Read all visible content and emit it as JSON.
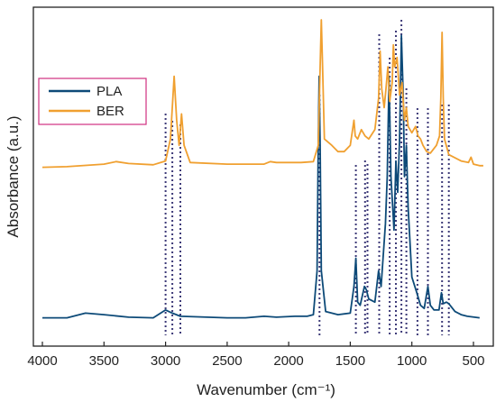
{
  "chart_data": {
    "type": "line",
    "xlabel": "Wavenumber (cm⁻¹)",
    "ylabel": "Absorbance (a.u.)",
    "x_ticks": [
      4000,
      3500,
      3000,
      2500,
      2000,
      1500,
      1000,
      500
    ],
    "xlim": [
      4000,
      400
    ],
    "ylim": [
      0,
      1
    ],
    "x_reversed": true,
    "legend_position": "top-left",
    "reference_lines_cm1": [
      3000,
      2945,
      2880,
      1750,
      1455,
      1380,
      1360,
      1265,
      1180,
      1130,
      1085,
      1045,
      955,
      870,
      755,
      700
    ],
    "series": [
      {
        "name": "PLA",
        "color": "#0d4a78",
        "baseline": 0.05,
        "points": [
          [
            4000,
            0.05
          ],
          [
            3800,
            0.05
          ],
          [
            3650,
            0.065
          ],
          [
            3500,
            0.06
          ],
          [
            3300,
            0.052
          ],
          [
            3100,
            0.05
          ],
          [
            3000,
            0.075
          ],
          [
            2945,
            0.065
          ],
          [
            2880,
            0.055
          ],
          [
            2500,
            0.05
          ],
          [
            2350,
            0.05
          ],
          [
            2200,
            0.055
          ],
          [
            2100,
            0.052
          ],
          [
            1950,
            0.055
          ],
          [
            1850,
            0.055
          ],
          [
            1800,
            0.06
          ],
          [
            1770,
            0.2
          ],
          [
            1760,
            0.6
          ],
          [
            1753,
            0.82
          ],
          [
            1745,
            0.6
          ],
          [
            1735,
            0.2
          ],
          [
            1700,
            0.07
          ],
          [
            1600,
            0.06
          ],
          [
            1500,
            0.065
          ],
          [
            1470,
            0.15
          ],
          [
            1455,
            0.24
          ],
          [
            1440,
            0.1
          ],
          [
            1420,
            0.09
          ],
          [
            1385,
            0.15
          ],
          [
            1370,
            0.14
          ],
          [
            1350,
            0.11
          ],
          [
            1300,
            0.1
          ],
          [
            1270,
            0.2
          ],
          [
            1250,
            0.15
          ],
          [
            1215,
            0.35
          ],
          [
            1200,
            0.5
          ],
          [
            1185,
            0.82
          ],
          [
            1170,
            0.5
          ],
          [
            1145,
            0.33
          ],
          [
            1130,
            0.55
          ],
          [
            1115,
            0.45
          ],
          [
            1100,
            0.62
          ],
          [
            1085,
            0.95
          ],
          [
            1070,
            0.75
          ],
          [
            1060,
            0.5
          ],
          [
            1045,
            0.6
          ],
          [
            1030,
            0.4
          ],
          [
            1000,
            0.18
          ],
          [
            960,
            0.13
          ],
          [
            930,
            0.09
          ],
          [
            900,
            0.08
          ],
          [
            870,
            0.15
          ],
          [
            850,
            0.09
          ],
          [
            820,
            0.075
          ],
          [
            780,
            0.075
          ],
          [
            760,
            0.13
          ],
          [
            745,
            0.095
          ],
          [
            720,
            0.1
          ],
          [
            700,
            0.095
          ],
          [
            650,
            0.07
          ],
          [
            600,
            0.06
          ],
          [
            550,
            0.055
          ],
          [
            450,
            0.05
          ]
        ]
      },
      {
        "name": "BER",
        "color": "#f0a030",
        "baseline": 0.53,
        "points": [
          [
            4000,
            0.53
          ],
          [
            3800,
            0.532
          ],
          [
            3500,
            0.54
          ],
          [
            3400,
            0.548
          ],
          [
            3300,
            0.542
          ],
          [
            3100,
            0.538
          ],
          [
            3000,
            0.55
          ],
          [
            2960,
            0.62
          ],
          [
            2930,
            0.82
          ],
          [
            2910,
            0.68
          ],
          [
            2890,
            0.6
          ],
          [
            2870,
            0.7
          ],
          [
            2850,
            0.6
          ],
          [
            2800,
            0.545
          ],
          [
            2500,
            0.54
          ],
          [
            2200,
            0.54
          ],
          [
            2150,
            0.548
          ],
          [
            2100,
            0.545
          ],
          [
            2000,
            0.545
          ],
          [
            1900,
            0.545
          ],
          [
            1800,
            0.548
          ],
          [
            1760,
            0.6
          ],
          [
            1745,
            0.85
          ],
          [
            1735,
            1.0
          ],
          [
            1725,
            0.85
          ],
          [
            1710,
            0.62
          ],
          [
            1650,
            0.6
          ],
          [
            1600,
            0.58
          ],
          [
            1550,
            0.58
          ],
          [
            1500,
            0.6
          ],
          [
            1470,
            0.68
          ],
          [
            1460,
            0.63
          ],
          [
            1440,
            0.62
          ],
          [
            1410,
            0.65
          ],
          [
            1380,
            0.63
          ],
          [
            1350,
            0.62
          ],
          [
            1300,
            0.65
          ],
          [
            1270,
            0.75
          ],
          [
            1258,
            0.9
          ],
          [
            1245,
            0.78
          ],
          [
            1225,
            0.72
          ],
          [
            1210,
            0.78
          ],
          [
            1195,
            0.85
          ],
          [
            1180,
            0.74
          ],
          [
            1160,
            0.8
          ],
          [
            1150,
            0.92
          ],
          [
            1140,
            0.85
          ],
          [
            1120,
            0.88
          ],
          [
            1100,
            0.76
          ],
          [
            1080,
            0.8
          ],
          [
            1060,
            0.68
          ],
          [
            1045,
            0.72
          ],
          [
            1030,
            0.66
          ],
          [
            1000,
            0.64
          ],
          [
            970,
            0.66
          ],
          [
            950,
            0.63
          ],
          [
            930,
            0.62
          ],
          [
            910,
            0.6
          ],
          [
            880,
            0.58
          ],
          [
            850,
            0.575
          ],
          [
            800,
            0.6
          ],
          [
            775,
            0.63
          ],
          [
            765,
            0.75
          ],
          [
            755,
            0.96
          ],
          [
            745,
            0.75
          ],
          [
            735,
            0.62
          ],
          [
            700,
            0.57
          ],
          [
            600,
            0.55
          ],
          [
            540,
            0.545
          ],
          [
            520,
            0.562
          ],
          [
            500,
            0.54
          ],
          [
            450,
            0.535
          ],
          [
            420,
            0.535
          ]
        ]
      }
    ]
  }
}
